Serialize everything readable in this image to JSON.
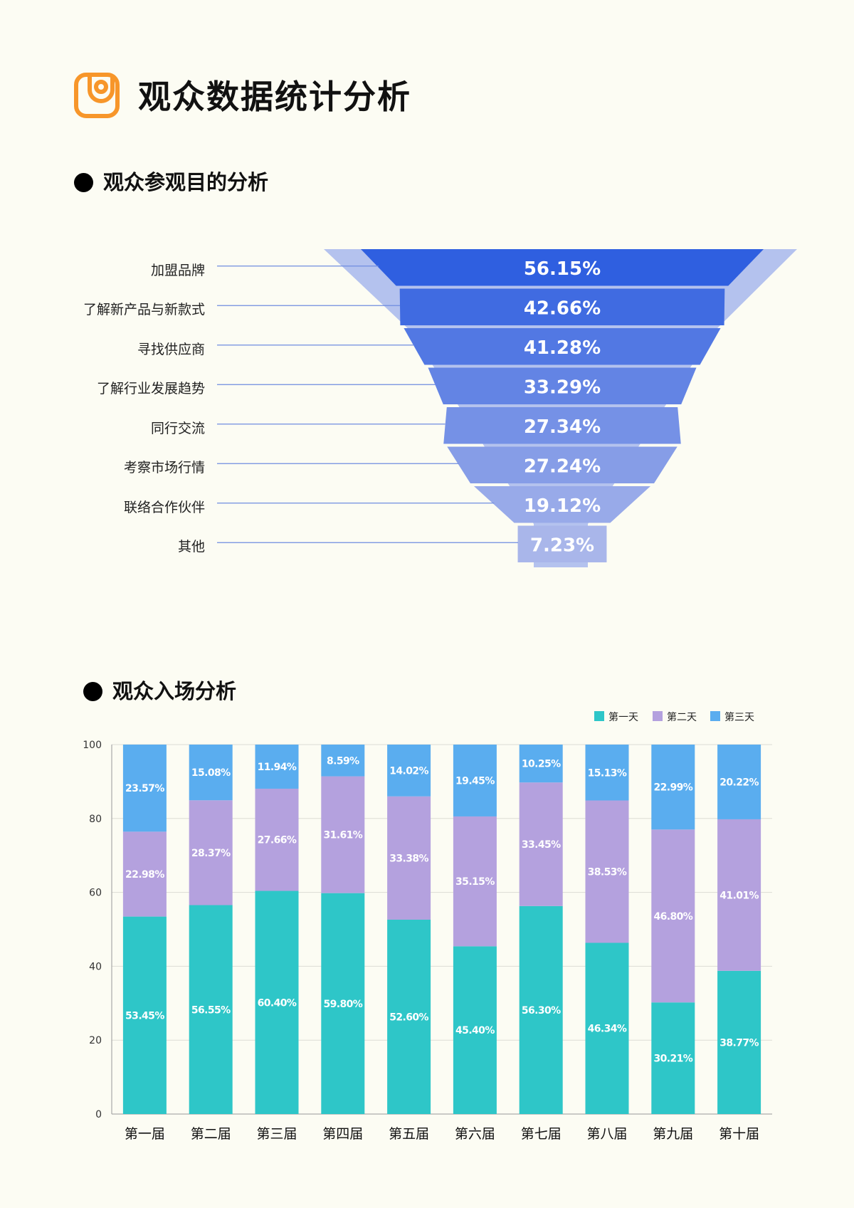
{
  "page": {
    "title": "观众数据统计分析",
    "brand_color": "#f7962a"
  },
  "funnel_section": {
    "title": "观众参观目的分析",
    "items": [
      {
        "label": "加盟品牌",
        "value_text": "56.15%"
      },
      {
        "label": "了解新产品与新款式",
        "value_text": "42.66%"
      },
      {
        "label": "寻找供应商",
        "value_text": "41.28%"
      },
      {
        "label": "了解行业发展趋势",
        "value_text": "33.29%"
      },
      {
        "label": "同行交流",
        "value_text": "27.34%"
      },
      {
        "label": "考察市场行情",
        "value_text": "27.24%"
      },
      {
        "label": "联络合作伙伴",
        "value_text": "19.12%"
      },
      {
        "label": "其他",
        "value_text": "7.23%"
      }
    ]
  },
  "bar_section": {
    "title": "观众入场分析"
  },
  "chart_data": [
    {
      "type": "funnel",
      "categories": [
        "加盟品牌",
        "了解新产品与新款式",
        "寻找供应商",
        "了解行业发展趋势",
        "同行交流",
        "考察市场行情",
        "联络合作伙伴",
        "其他"
      ],
      "values": [
        56.15,
        42.66,
        41.28,
        33.29,
        27.34,
        27.24,
        19.12,
        7.23
      ],
      "colors": {
        "top": "#2f5fe0",
        "bottom": "#a9b6ea",
        "outer": "#b4c2ee"
      }
    },
    {
      "type": "bar",
      "stacked": true,
      "categories": [
        "第一届",
        "第二届",
        "第三届",
        "第四届",
        "第五届",
        "第六届",
        "第七届",
        "第八届",
        "第九届",
        "第十届"
      ],
      "series": [
        {
          "name": "第一天",
          "color": "#2ec6c8",
          "values": [
            53.45,
            56.55,
            60.4,
            59.8,
            52.6,
            45.4,
            56.3,
            46.34,
            30.21,
            38.77
          ]
        },
        {
          "name": "第二天",
          "color": "#b4a1de",
          "values": [
            22.98,
            28.37,
            27.66,
            31.61,
            33.38,
            35.15,
            33.45,
            38.53,
            46.8,
            41.01
          ]
        },
        {
          "name": "第三天",
          "color": "#5aadef",
          "values": [
            23.57,
            15.08,
            11.94,
            8.59,
            14.02,
            19.45,
            10.25,
            15.13,
            22.99,
            20.22
          ]
        }
      ],
      "ylim": [
        0,
        100
      ],
      "yticks": [
        0,
        20,
        40,
        60,
        80,
        100
      ],
      "grid": true,
      "legend": "top-right"
    }
  ]
}
